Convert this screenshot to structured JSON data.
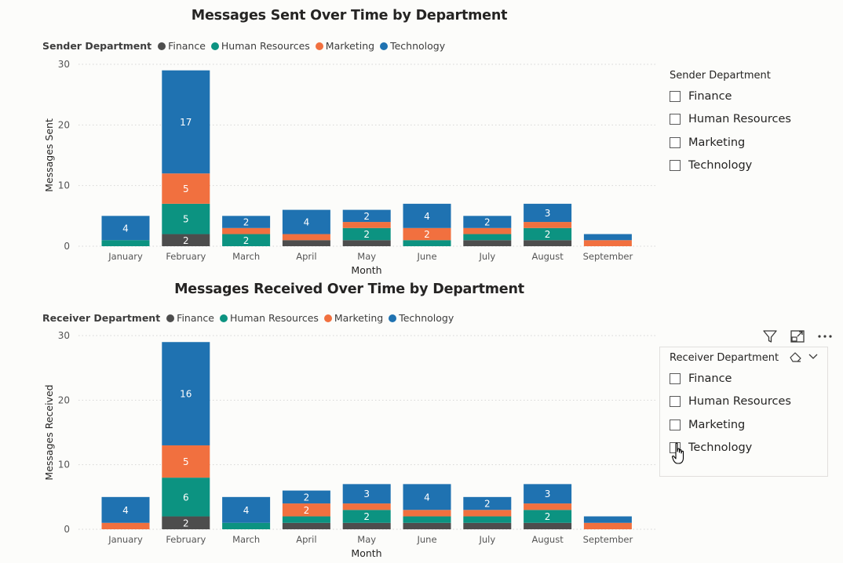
{
  "colors": {
    "finance": "#4d4d4d",
    "human_resources": "#0c9381",
    "marketing": "#f1703f",
    "technology": "#1f72b1",
    "gridline": "#d9d9d9"
  },
  "legend_entries": [
    {
      "label": "Finance",
      "color": "#4d4d4d"
    },
    {
      "label": "Human Resources",
      "color": "#0c9381"
    },
    {
      "label": "Marketing",
      "color": "#f1703f"
    },
    {
      "label": "Technology",
      "color": "#1f72b1"
    }
  ],
  "sent": {
    "title": "Messages Sent Over Time by Department",
    "legend_title": "Sender Department",
    "slicer_title": "Sender Department",
    "slicer_items": [
      "Finance",
      "Human Resources",
      "Marketing",
      "Technology"
    ]
  },
  "received": {
    "title": "Messages Received Over Time by Department",
    "legend_title": "Receiver Department",
    "slicer_title": "Receiver Department",
    "slicer_items": [
      "Finance",
      "Human Resources",
      "Marketing",
      "Technology"
    ]
  },
  "toolbar": {
    "filter_icon": "filter-icon",
    "focus_icon": "focus-mode-icon",
    "more_icon": "more-options-icon",
    "eraser_icon": "clear-selections-icon",
    "chevron_icon": "chevron-down-icon"
  },
  "chart_data": [
    {
      "type": "bar",
      "stacked": true,
      "title": "Messages Sent Over Time by Department",
      "xlabel": "Month",
      "ylabel": "Messages Sent",
      "ylim": [
        0,
        30
      ],
      "yticks": [
        0,
        10,
        20,
        30
      ],
      "legend_title": "Sender Department",
      "legend_position": "top-left",
      "grid": true,
      "categories": [
        "January",
        "February",
        "March",
        "April",
        "May",
        "June",
        "July",
        "August",
        "September"
      ],
      "series": [
        {
          "name": "Finance",
          "color": "#4d4d4d",
          "values": [
            0,
            2,
            0,
            1,
            1,
            0,
            1,
            1,
            0
          ],
          "labels": [
            "",
            "2",
            "",
            "",
            "",
            "",
            "",
            "",
            ""
          ]
        },
        {
          "name": "Human Resources",
          "color": "#0c9381",
          "values": [
            1,
            5,
            2,
            0,
            2,
            1,
            1,
            2,
            0
          ],
          "labels": [
            "",
            "5",
            "2",
            "",
            "2",
            "",
            "",
            "2",
            ""
          ]
        },
        {
          "name": "Marketing",
          "color": "#f1703f",
          "values": [
            0,
            5,
            1,
            1,
            1,
            2,
            1,
            1,
            1
          ],
          "labels": [
            "",
            "5",
            "",
            "",
            "",
            "2",
            "",
            "",
            ""
          ]
        },
        {
          "name": "Technology",
          "color": "#1f72b1",
          "values": [
            4,
            17,
            2,
            4,
            2,
            4,
            2,
            3,
            1
          ],
          "labels": [
            "4",
            "17",
            "2",
            "4",
            "2",
            "4",
            "2",
            "3",
            ""
          ]
        }
      ]
    },
    {
      "type": "bar",
      "stacked": true,
      "title": "Messages Received Over Time by Department",
      "xlabel": "Month",
      "ylabel": "Messages Received",
      "ylim": [
        0,
        30
      ],
      "yticks": [
        0,
        10,
        20,
        30
      ],
      "legend_title": "Receiver Department",
      "legend_position": "top-left",
      "grid": true,
      "categories": [
        "January",
        "February",
        "March",
        "April",
        "May",
        "June",
        "July",
        "August",
        "September"
      ],
      "series": [
        {
          "name": "Finance",
          "color": "#4d4d4d",
          "values": [
            0,
            2,
            0,
            1,
            1,
            1,
            1,
            1,
            0
          ],
          "labels": [
            "",
            "2",
            "",
            "",
            "",
            "",
            "",
            "",
            ""
          ]
        },
        {
          "name": "Human Resources",
          "color": "#0c9381",
          "values": [
            0,
            6,
            1,
            1,
            2,
            1,
            1,
            2,
            0
          ],
          "labels": [
            "",
            "6",
            "",
            "",
            "2",
            "",
            "",
            "2",
            ""
          ]
        },
        {
          "name": "Marketing",
          "color": "#f1703f",
          "values": [
            1,
            5,
            0,
            2,
            1,
            1,
            1,
            1,
            1
          ],
          "labels": [
            "",
            "5",
            "",
            "2",
            "",
            "",
            "",
            "",
            ""
          ]
        },
        {
          "name": "Technology",
          "color": "#1f72b1",
          "values": [
            4,
            16,
            4,
            2,
            3,
            4,
            2,
            3,
            1
          ],
          "labels": [
            "4",
            "16",
            "4",
            "2",
            "3",
            "4",
            "2",
            "3",
            ""
          ]
        }
      ]
    }
  ]
}
